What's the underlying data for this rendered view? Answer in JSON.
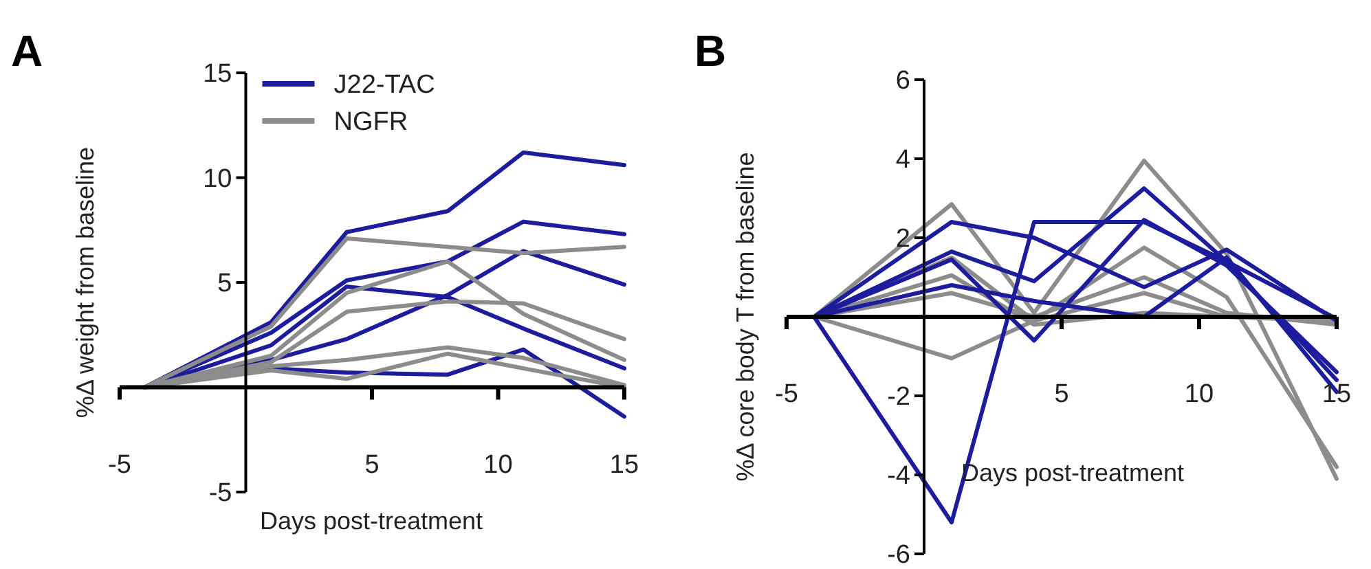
{
  "chart_data": [
    {
      "type": "line",
      "title": "A",
      "xlabel": "Days post-treatment",
      "ylabel": "%Δ weight from baseline",
      "x": [
        -4,
        1,
        4,
        8,
        11,
        15
      ],
      "xlim": [
        -5,
        15
      ],
      "xticks": [
        -5,
        5,
        10,
        15
      ],
      "ylim": [
        -5,
        15
      ],
      "yticks": [
        -5,
        5,
        10,
        15
      ],
      "legend": "top left",
      "marker": "none",
      "line_style": "solid",
      "grid": false,
      "series": [
        {
          "name": "J22-TAC",
          "color": "#1c1c9c",
          "values": [
            0,
            3.1,
            7.4,
            8.4,
            11.2,
            10.6
          ]
        },
        {
          "color": "#1c1c9c",
          "values": [
            0,
            2.6,
            5.1,
            6.0,
            7.9,
            7.3
          ]
        },
        {
          "color": "#1c1c9c",
          "values": [
            0,
            1.3,
            2.3,
            4.4,
            6.5,
            4.9
          ]
        },
        {
          "color": "#1c1c9c",
          "values": [
            0,
            2.0,
            4.8,
            4.3,
            2.8,
            0.9
          ]
        },
        {
          "color": "#1c1c9c",
          "values": [
            0,
            0.9,
            0.7,
            0.6,
            1.8,
            -1.4
          ]
        },
        {
          "name": "NGFR",
          "color": "#8c8c8c",
          "values": [
            0,
            2.9,
            7.1,
            6.7,
            6.4,
            6.7
          ]
        },
        {
          "color": "#8c8c8c",
          "values": [
            0,
            1.5,
            4.5,
            6.0,
            3.5,
            1.3
          ]
        },
        {
          "color": "#8c8c8c",
          "values": [
            0,
            1.2,
            3.6,
            4.1,
            4.0,
            2.3
          ]
        },
        {
          "color": "#8c8c8c",
          "values": [
            0,
            1.0,
            1.3,
            1.9,
            1.4,
            0.1
          ]
        },
        {
          "color": "#8c8c8c",
          "values": [
            0,
            0.8,
            0.4,
            1.6,
            0.9,
            0
          ]
        }
      ]
    },
    {
      "type": "line",
      "title": "B",
      "xlabel": "Days post-treatment",
      "ylabel": "%Δ core body T from baseline",
      "x": [
        -4,
        1,
        4,
        8,
        11,
        15
      ],
      "xlim": [
        -5,
        15
      ],
      "xticks": [
        -5,
        5,
        10,
        15
      ],
      "ylim": [
        -6,
        6
      ],
      "yticks": [
        -6,
        -4,
        -2,
        2,
        4,
        6
      ],
      "legend": false,
      "marker": "none",
      "line_style": "solid",
      "grid": false,
      "series": [
        {
          "color": "#8c8c8c",
          "values": [
            0,
            2.85,
            0.1,
            3.95,
            1.6,
            -4.1
          ]
        },
        {
          "color": "#8c8c8c",
          "values": [
            0,
            1.5,
            -0.1,
            1.75,
            0.5,
            -3.8
          ]
        },
        {
          "color": "#8c8c8c",
          "values": [
            0,
            -1.05,
            -0.1,
            0.6,
            0,
            -0.1
          ]
        },
        {
          "color": "#8c8c8c",
          "values": [
            0,
            0.6,
            0,
            1.0,
            0.1,
            -0.2
          ]
        },
        {
          "color": "#8c8c8c",
          "values": [
            0,
            1.05,
            -0.2,
            0.1,
            0,
            -0.1
          ]
        },
        {
          "color": "#1c1c9c",
          "values": [
            0,
            2.4,
            2.0,
            0.75,
            1.7,
            -0.1
          ]
        },
        {
          "color": "#1c1c9c",
          "values": [
            0,
            1.65,
            0.9,
            3.25,
            1.4,
            -1.6
          ]
        },
        {
          "color": "#1c1c9c",
          "values": [
            0,
            1.45,
            -0.6,
            2.45,
            1.3,
            -1.4
          ]
        },
        {
          "color": "#1c1c9c",
          "values": [
            0,
            0.8,
            0.4,
            0,
            1.5,
            -1.9
          ]
        },
        {
          "color": "#1c1c9c",
          "values": [
            0,
            -5.2,
            2.4,
            2.4,
            1.4,
            -0.05
          ]
        }
      ]
    }
  ]
}
